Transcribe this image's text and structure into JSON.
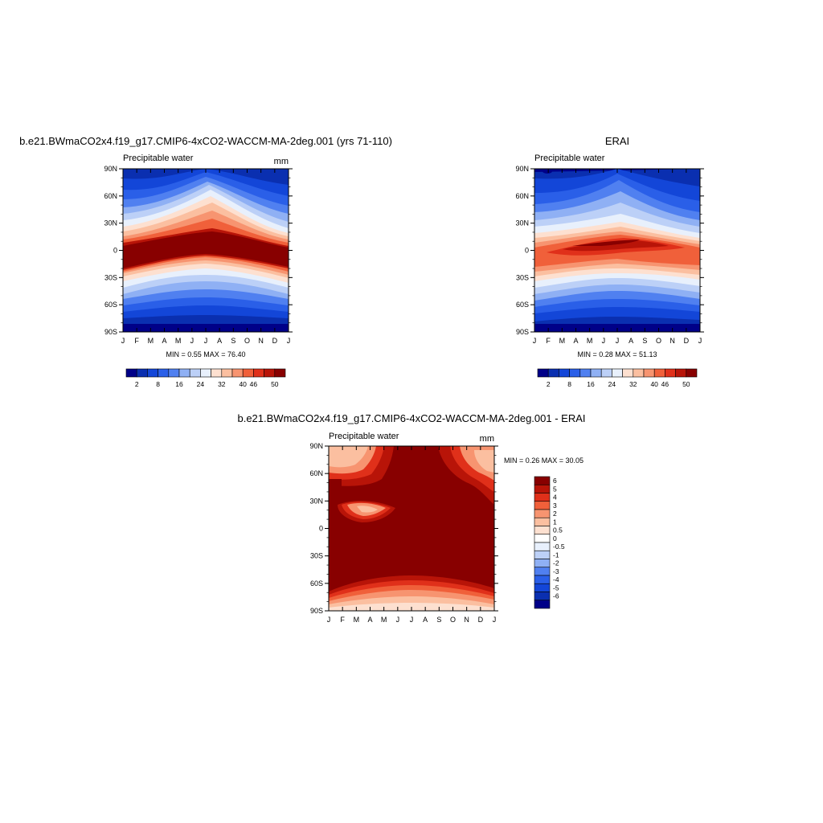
{
  "chart_data": [
    {
      "type": "heatmap",
      "title": "b.e21.BWmaCO2x4.f19_g17.CMIP6-4xCO2-WACCM-MA-2deg.001 (yrs 71-110)",
      "subtitle": "Precipitable water",
      "units": "mm",
      "x_labels": [
        "J",
        "F",
        "M",
        "A",
        "M",
        "J",
        "J",
        "A",
        "S",
        "O",
        "N",
        "D",
        "J"
      ],
      "y_labels": [
        "90N",
        "60N",
        "30N",
        "0",
        "30S",
        "60S",
        "90S"
      ],
      "ylim": [
        -90,
        90
      ],
      "stats": "MIN =   0.55 MAX =  76.40",
      "colorbar": {
        "labels": [
          "2",
          "8",
          "16",
          "24",
          "32",
          "40",
          "46",
          "50"
        ],
        "colors": [
          "#000088",
          "#0a2fb0",
          "#1346d8",
          "#2a5fe8",
          "#5080f0",
          "#8fb0f4",
          "#bcd0f7",
          "#e8f0fc",
          "#fde0d0",
          "#fbbfa0",
          "#f79470",
          "#f0603a",
          "#e0301a",
          "#b81408",
          "#880000"
        ]
      }
    },
    {
      "type": "heatmap",
      "title": "ERAI",
      "subtitle": "Precipitable water",
      "units": "",
      "x_labels": [
        "J",
        "F",
        "M",
        "A",
        "M",
        "J",
        "J",
        "A",
        "S",
        "O",
        "N",
        "D",
        "J"
      ],
      "y_labels": [
        "90N",
        "60N",
        "30N",
        "0",
        "30S",
        "60S",
        "90S"
      ],
      "ylim": [
        -90,
        90
      ],
      "stats": "MIN =   0.28 MAX =  51.13",
      "colorbar": {
        "labels": [
          "2",
          "8",
          "16",
          "24",
          "32",
          "40",
          "46",
          "50"
        ],
        "colors": [
          "#000088",
          "#0a2fb0",
          "#1346d8",
          "#2a5fe8",
          "#5080f0",
          "#8fb0f4",
          "#bcd0f7",
          "#e8f0fc",
          "#fde0d0",
          "#fbbfa0",
          "#f79470",
          "#f0603a",
          "#e0301a",
          "#b81408",
          "#880000"
        ]
      }
    },
    {
      "type": "heatmap",
      "title": "b.e21.BWmaCO2x4.f19_g17.CMIP6-4xCO2-WACCM-MA-2deg.001 - ERAI",
      "subtitle": "Precipitable water",
      "units": "mm",
      "x_labels": [
        "J",
        "F",
        "M",
        "A",
        "M",
        "J",
        "J",
        "A",
        "S",
        "O",
        "N",
        "D",
        "J"
      ],
      "y_labels": [
        "90N",
        "60N",
        "30N",
        "0",
        "30S",
        "60S",
        "90S"
      ],
      "ylim": [
        -90,
        90
      ],
      "stats": "MIN =   0.26 MAX =  30.05",
      "colorbar": {
        "labels": [
          "6",
          "5",
          "4",
          "3",
          "2",
          "1",
          "0.5",
          "0",
          "-0.5",
          "-1",
          "-2",
          "-3",
          "-4",
          "-5",
          "-6"
        ],
        "colors": [
          "#880000",
          "#b81408",
          "#e0301a",
          "#f0603a",
          "#f79470",
          "#fbbfa0",
          "#fde0d0",
          "#ffffff",
          "#e8f0fc",
          "#bcd0f7",
          "#8fb0f4",
          "#5080f0",
          "#2a5fe8",
          "#1346d8",
          "#0a2fb0",
          "#000088"
        ]
      }
    }
  ]
}
